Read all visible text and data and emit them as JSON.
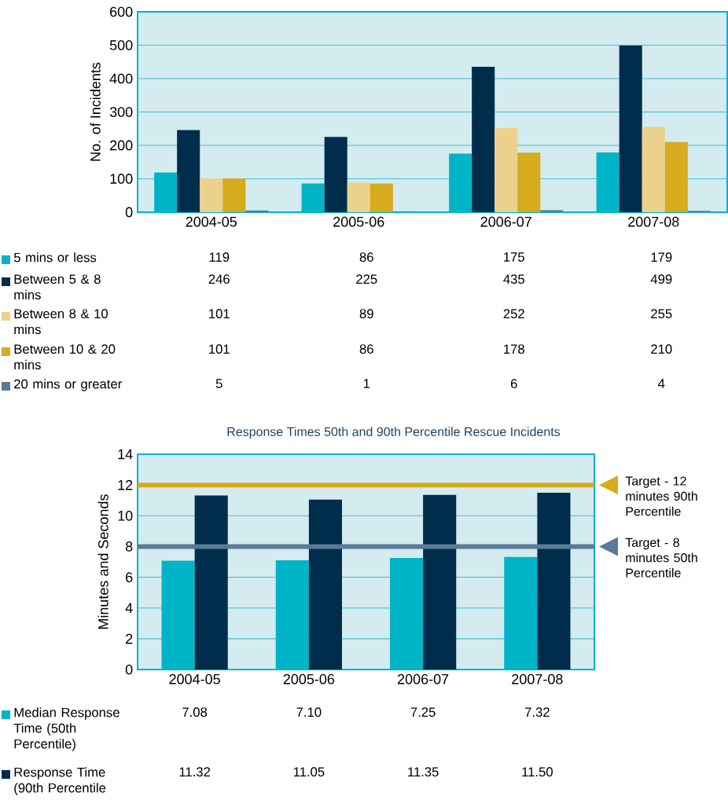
{
  "chart_data": [
    {
      "type": "bar",
      "ylabel": "No. of Incidents",
      "categories": [
        "2004-05",
        "2005-06",
        "2006-07",
        "2007-08"
      ],
      "series": [
        {
          "name": "5 mins or less",
          "color": "#00b4c8",
          "values": [
            119,
            86,
            175,
            179
          ]
        },
        {
          "name": "Between 5 & 8 mins",
          "color": "#002d4b",
          "values": [
            246,
            225,
            435,
            499
          ]
        },
        {
          "name": "Between 8 & 10 mins",
          "color": "#ecd18c",
          "values": [
            101,
            89,
            252,
            255
          ]
        },
        {
          "name": "Between 10 & 20 mins",
          "color": "#d6ab1e",
          "values": [
            101,
            86,
            178,
            210
          ]
        },
        {
          "name": "20 mins or greater",
          "color": "#5a7a96",
          "values": [
            5,
            1,
            6,
            4
          ]
        }
      ],
      "ylim": [
        0,
        600
      ],
      "yticks": [
        0,
        100,
        200,
        300,
        400,
        500,
        600
      ],
      "grid": "y",
      "legend": "bottom",
      "data_labels": true
    },
    {
      "type": "bar",
      "title": "Response Times 50th and 90th Percentile Rescue Incidents",
      "ylabel": "Minutes and Seconds",
      "categories": [
        "2004-05",
        "2005-06",
        "2006-07",
        "2007-08"
      ],
      "series": [
        {
          "name": "Median Response Time (50th Percentile)",
          "color": "#00b4c8",
          "values": [
            7.08,
            7.1,
            7.25,
            7.32
          ],
          "value_labels": [
            "7.08",
            "7.10",
            "7.25",
            "7.32"
          ]
        },
        {
          "name": "Response Time (90th Percentile",
          "color": "#002d4b",
          "values": [
            11.32,
            11.05,
            11.35,
            11.5
          ],
          "value_labels": [
            "11.32",
            "11.05",
            "11.35",
            "11.50"
          ]
        }
      ],
      "ylim": [
        0,
        14
      ],
      "yticks": [
        0,
        2,
        4,
        6,
        8,
        10,
        12,
        14
      ],
      "grid": "y",
      "legend": "bottom",
      "ref_lines": [
        {
          "axis": "y",
          "value": 12,
          "label": "Target - 12 minutes 90th Percentile",
          "color": "#d6ab1e"
        },
        {
          "axis": "y",
          "value": 8,
          "label": "Target - 8 minutes 50th Percentile",
          "color": "#5a7a96"
        }
      ]
    }
  ]
}
